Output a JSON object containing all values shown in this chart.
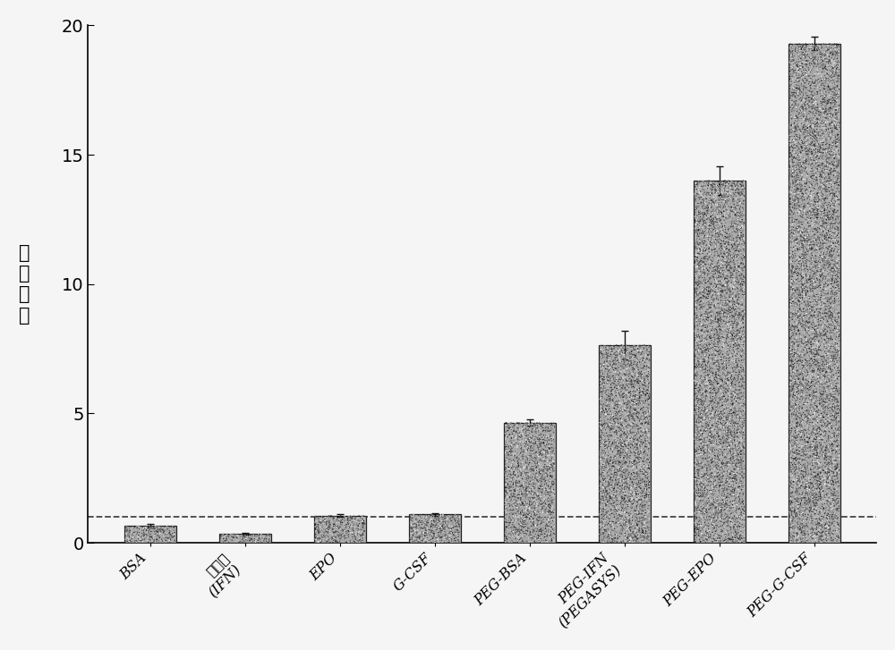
{
  "categories": [
    "BSA",
    "干扰素\n(IFN)",
    "EPO",
    "G-CSF",
    "PEG-BSA",
    "PEG-IFN\n(PEGASYS)",
    "PEG-EPO",
    "PEG-G-CSF"
  ],
  "values": [
    0.65,
    0.35,
    1.05,
    1.1,
    4.65,
    7.65,
    14.0,
    19.3
  ],
  "errors": [
    0.07,
    0.04,
    0.06,
    0.06,
    0.12,
    0.55,
    0.55,
    0.25
  ],
  "ylabel": "分配系数",
  "ylim": [
    0,
    20
  ],
  "yticks": [
    0,
    5,
    10,
    15,
    20
  ],
  "hline_y": 1.0,
  "bar_color": "#888888",
  "bar_edgecolor": "#222222",
  "background_color": "#f5f5f5",
  "dashed_line_color": "#444444",
  "title": ""
}
